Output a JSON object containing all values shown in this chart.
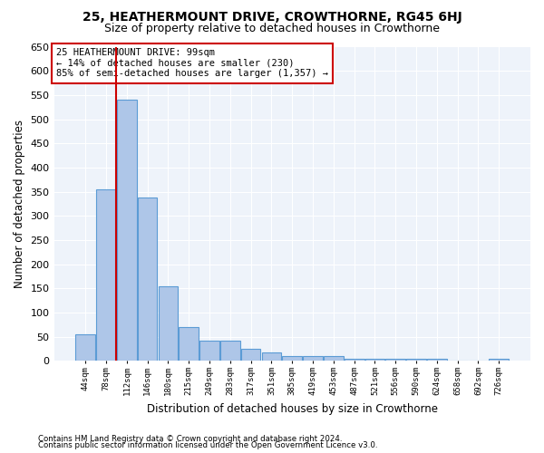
{
  "title": "25, HEATHERMOUNT DRIVE, CROWTHORNE, RG45 6HJ",
  "subtitle": "Size of property relative to detached houses in Crowthorne",
  "xlabel": "Distribution of detached houses by size in Crowthorne",
  "ylabel": "Number of detached properties",
  "categories": [
    "44sqm",
    "78sqm",
    "112sqm",
    "146sqm",
    "180sqm",
    "215sqm",
    "249sqm",
    "283sqm",
    "317sqm",
    "351sqm",
    "385sqm",
    "419sqm",
    "453sqm",
    "487sqm",
    "521sqm",
    "556sqm",
    "590sqm",
    "624sqm",
    "658sqm",
    "692sqm",
    "726sqm"
  ],
  "values": [
    55,
    355,
    540,
    338,
    155,
    70,
    42,
    42,
    25,
    18,
    10,
    10,
    10,
    5,
    5,
    5,
    5,
    5,
    0,
    0,
    5
  ],
  "bar_color": "#aec6e8",
  "bar_edge_color": "#5b9bd5",
  "annotation_text": "25 HEATHERMOUNT DRIVE: 99sqm\n← 14% of detached houses are smaller (230)\n85% of semi-detached houses are larger (1,357) →",
  "annotation_box_color": "#ffffff",
  "annotation_box_edge_color": "#cc0000",
  "red_line_color": "#cc0000",
  "ylim": [
    0,
    650
  ],
  "yticks": [
    0,
    50,
    100,
    150,
    200,
    250,
    300,
    350,
    400,
    450,
    500,
    550,
    600,
    650
  ],
  "footnote1": "Contains HM Land Registry data © Crown copyright and database right 2024.",
  "footnote2": "Contains public sector information licensed under the Open Government Licence v3.0.",
  "background_color": "#eef3fa",
  "grid_color": "#ffffff",
  "title_fontsize": 10,
  "subtitle_fontsize": 9,
  "label_fontsize": 8.5
}
